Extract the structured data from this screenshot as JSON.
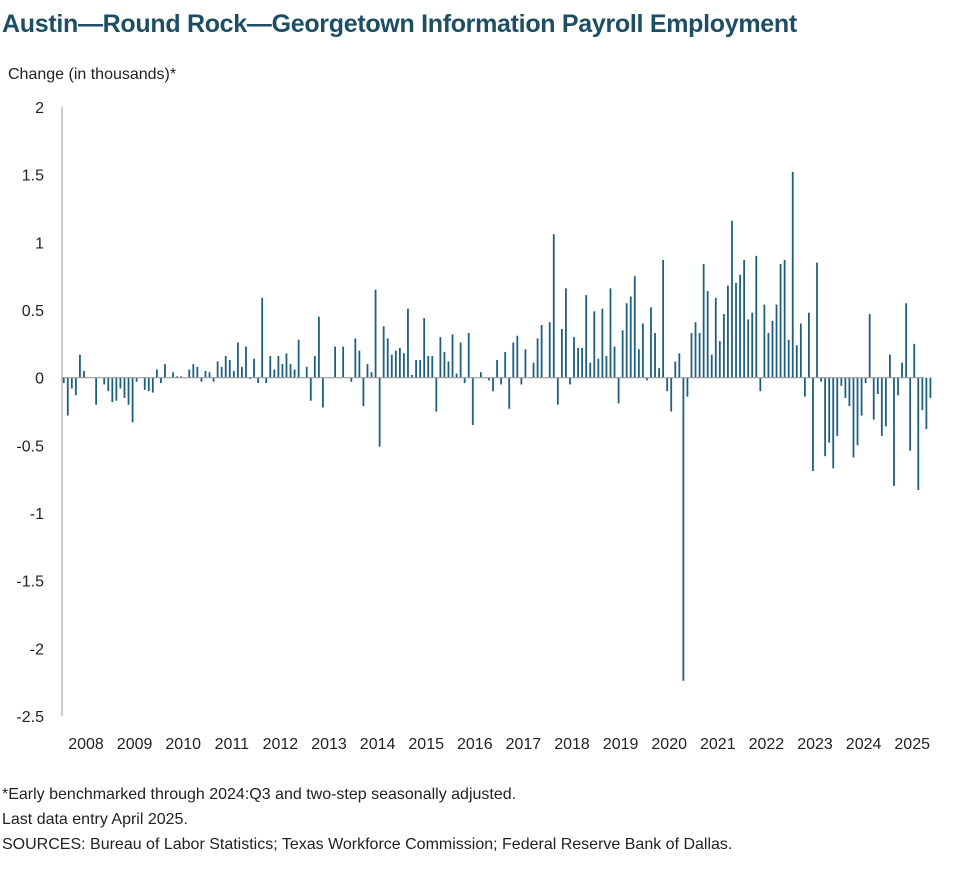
{
  "title": "Austin—Round Rock—Georgetown Information Payroll Employment",
  "notes": [
    "*Early benchmarked through 2024:Q3 and two-step seasonally adjusted.",
    "Last data entry April 2025.",
    "SOURCES:  Bureau of Labor Statistics; Texas Workforce Commission;  Federal Reserve Bank of Dallas."
  ],
  "colors": {
    "bar": "#1d5f7f",
    "title": "#1d4e63",
    "axis": "#9a9a9a"
  },
  "chart_data": {
    "type": "bar",
    "title": "Austin—Round Rock—Georgetown Information Payroll Employment",
    "ylabel": "Change (in thousands)*",
    "xlabel": "",
    "ylim": [
      -2.5,
      2
    ],
    "yticks": [
      2,
      1.5,
      1,
      0.5,
      0,
      -0.5,
      -1,
      -1.5,
      -2,
      -2.5
    ],
    "ytick_labels": [
      "2",
      "1.5",
      "1",
      "0.5",
      "0",
      "-0.5",
      "-1",
      "-1.5",
      "-2",
      "-2.5"
    ],
    "xtick_labels": [
      "2008",
      "2009",
      "2010",
      "2011",
      "2012",
      "2013",
      "2014",
      "2015",
      "2016",
      "2017",
      "2018",
      "2019",
      "2020",
      "2021",
      "2022",
      "2023",
      "2024",
      "2025"
    ],
    "start": "2008-01",
    "frequency": "monthly",
    "grid": false,
    "legend": "none",
    "values": [
      -0.04,
      -0.28,
      -0.08,
      -0.13,
      0.17,
      0.05,
      0.0,
      0.0,
      -0.2,
      0.0,
      -0.05,
      -0.1,
      -0.18,
      -0.17,
      -0.08,
      -0.15,
      -0.2,
      -0.33,
      -0.03,
      0.0,
      -0.09,
      -0.1,
      -0.11,
      0.06,
      -0.04,
      0.1,
      0.0,
      0.04,
      0.01,
      0.01,
      0.0,
      0.06,
      0.1,
      0.08,
      -0.03,
      0.05,
      0.04,
      -0.03,
      0.12,
      0.08,
      0.16,
      0.13,
      0.05,
      0.26,
      0.08,
      0.23,
      -0.01,
      0.14,
      -0.04,
      0.59,
      -0.04,
      0.16,
      0.06,
      0.16,
      0.1,
      0.18,
      0.1,
      0.06,
      0.28,
      0.0,
      0.08,
      -0.17,
      0.16,
      0.45,
      -0.22,
      0.0,
      0.0,
      0.23,
      0.0,
      0.23,
      0.0,
      -0.03,
      0.29,
      0.2,
      -0.21,
      0.1,
      0.04,
      0.65,
      -0.51,
      0.38,
      0.29,
      0.17,
      0.2,
      0.22,
      0.18,
      0.51,
      0.02,
      0.13,
      0.13,
      0.44,
      0.16,
      0.16,
      -0.25,
      0.3,
      0.19,
      0.12,
      0.32,
      0.03,
      0.26,
      -0.04,
      0.33,
      -0.35,
      0.0,
      0.04,
      0.0,
      -0.02,
      -0.1,
      0.13,
      -0.05,
      0.19,
      -0.23,
      0.26,
      0.31,
      -0.05,
      0.21,
      0.0,
      0.11,
      0.29,
      0.39,
      0.0,
      0.41,
      1.06,
      -0.2,
      0.36,
      0.66,
      -0.05,
      0.3,
      0.22,
      0.22,
      0.61,
      0.11,
      0.49,
      0.14,
      0.51,
      0.16,
      0.66,
      0.23,
      -0.19,
      0.35,
      0.55,
      0.6,
      0.75,
      0.21,
      0.4,
      -0.02,
      0.52,
      0.33,
      0.07,
      0.87,
      -0.1,
      -0.25,
      0.12,
      0.18,
      -2.24,
      -0.14,
      0.33,
      0.41,
      0.33,
      0.84,
      0.64,
      0.17,
      0.59,
      0.27,
      0.47,
      0.68,
      1.16,
      0.7,
      0.76,
      0.87,
      0.43,
      0.48,
      0.9,
      -0.1,
      0.54,
      0.33,
      0.42,
      0.54,
      0.84,
      0.87,
      0.28,
      1.52,
      0.24,
      0.4,
      -0.14,
      0.48,
      -0.69,
      0.85,
      -0.03,
      -0.58,
      -0.48,
      -0.67,
      -0.43,
      -0.06,
      -0.15,
      -0.21,
      -0.59,
      -0.5,
      -0.28,
      -0.04,
      0.47,
      -0.31,
      -0.12,
      -0.43,
      -0.36,
      0.17,
      -0.8,
      -0.13,
      0.11,
      0.55,
      -0.54,
      0.25,
      -0.83,
      -0.24,
      -0.38,
      -0.15
    ]
  }
}
